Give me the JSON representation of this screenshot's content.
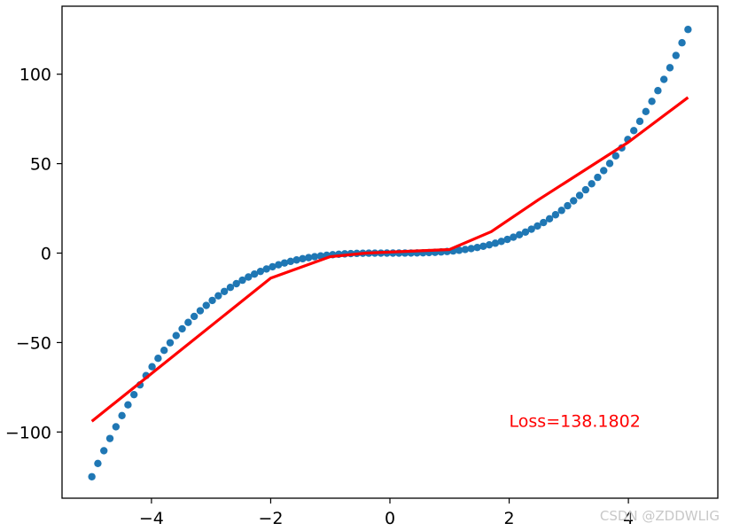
{
  "chart_data": {
    "type": "scatter",
    "xlim": [
      -5.5,
      5.5
    ],
    "ylim": [
      -137,
      138
    ],
    "x_ticks": [
      -4,
      -2,
      0,
      2,
      4
    ],
    "y_ticks": [
      -100,
      -50,
      0,
      50,
      100
    ],
    "x_tick_labels": [
      "−4",
      "−2",
      "0",
      "2",
      "4"
    ],
    "y_tick_labels": [
      "−100",
      "−50",
      "0",
      "50",
      "100"
    ],
    "grid": false,
    "legend": "none",
    "series": [
      {
        "kind": "scatter",
        "color": "#1f77b4",
        "function": "y = x^3",
        "x_range": [
          -5,
          5
        ],
        "n_points": 100
      },
      {
        "kind": "line",
        "color": "#ff0000",
        "x": [
          -5,
          -2,
          -1,
          -0.4,
          1,
          1.7,
          2.5,
          4,
          5
        ],
        "y": [
          -94,
          -14,
          -2,
          0,
          2,
          12,
          30,
          62,
          87
        ]
      }
    ],
    "annotation": {
      "text": "Loss=138.1802",
      "x": 2,
      "y": -97,
      "color": "#ff0000"
    }
  },
  "watermark": "CSDN @ZDDWLIG"
}
